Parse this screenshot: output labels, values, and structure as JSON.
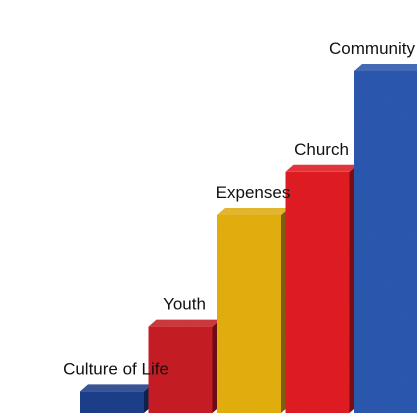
{
  "chart_data": {
    "type": "bar",
    "categories": [
      "Culture of Life",
      "Youth",
      "Expenses",
      "Church",
      "Community"
    ],
    "values": [
      6,
      24,
      55,
      67,
      95
    ],
    "colors": [
      "#1f3f8a",
      "#c81e25",
      "#e5b012",
      "#e11b22",
      "#2d59b0"
    ],
    "ylim": [
      0,
      100
    ],
    "grid": false,
    "legend": "none",
    "style": "3d"
  }
}
